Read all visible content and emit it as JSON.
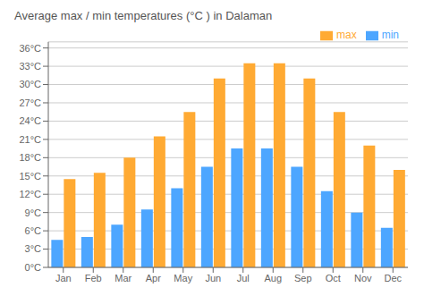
{
  "chart_data": {
    "type": "bar",
    "title": "Average max / min temperatures (°C ) in Dalaman",
    "categories": [
      "Jan",
      "Feb",
      "Mar",
      "Apr",
      "May",
      "Jun",
      "Jul",
      "Aug",
      "Sep",
      "Oct",
      "Nov",
      "Dec"
    ],
    "series": [
      {
        "name": "min",
        "color": "#4da6ff",
        "values": [
          4.5,
          5.0,
          7.0,
          9.5,
          13.0,
          16.5,
          19.5,
          19.5,
          16.5,
          12.5,
          9.0,
          6.5
        ]
      },
      {
        "name": "max",
        "color": "#ffaa33",
        "values": [
          14.5,
          15.5,
          18.0,
          21.5,
          25.5,
          31.0,
          33.5,
          33.5,
          31.0,
          25.5,
          20.0,
          16.0
        ]
      }
    ],
    "ylim": [
      0,
      37
    ],
    "yticks": [
      {
        "value": 0,
        "label": "0°C"
      },
      {
        "value": 3,
        "label": "3°C"
      },
      {
        "value": 6,
        "label": "6°C"
      },
      {
        "value": 9,
        "label": "9°C"
      },
      {
        "value": 12,
        "label": "12°C"
      },
      {
        "value": 15,
        "label": "15°C"
      },
      {
        "value": 18,
        "label": "18°C"
      },
      {
        "value": 21,
        "label": "21°C"
      },
      {
        "value": 24,
        "label": "24°C"
      },
      {
        "value": 27,
        "label": "27°C"
      },
      {
        "value": 30,
        "label": "30°C"
      },
      {
        "value": 33,
        "label": "33°C"
      },
      {
        "value": 36,
        "label": "36°C"
      }
    ],
    "grid": true,
    "legend": "upper right"
  }
}
